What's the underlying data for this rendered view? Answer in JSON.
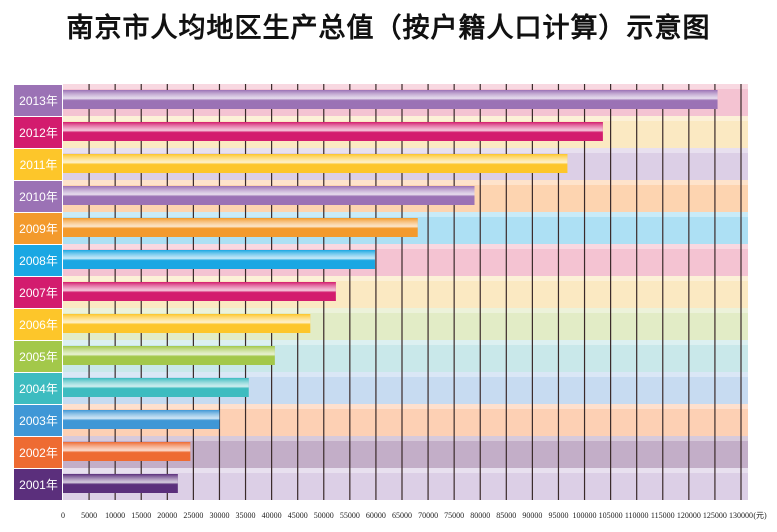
{
  "chart_data": {
    "type": "bar",
    "orientation": "horizontal",
    "title": "南京市人均地区生产总值（按户籍人口计算）示意图",
    "unit_label": "(元)",
    "categories": [
      "2013年",
      "2012年",
      "2011年",
      "2010年",
      "2009年",
      "2008年",
      "2007年",
      "2006年",
      "2005年",
      "2004年",
      "2003年",
      "2002年",
      "2001年"
    ],
    "values": [
      125500,
      103500,
      96700,
      78900,
      68000,
      59800,
      52300,
      47400,
      40600,
      35600,
      30000,
      24400,
      22000
    ],
    "xlim": [
      0,
      130000
    ],
    "x_ticks": [
      0,
      5000,
      10000,
      15000,
      20000,
      25000,
      30000,
      35000,
      40000,
      45000,
      50000,
      55000,
      60000,
      65000,
      70000,
      75000,
      80000,
      85000,
      90000,
      95000,
      100000,
      105000,
      110000,
      115000,
      120000,
      125000,
      130000
    ],
    "grid": true,
    "bar_colors": [
      "#9b72b5",
      "#d31c6e",
      "#fdc62a",
      "#9b72b5",
      "#f39a2c",
      "#1aa7e3",
      "#d31c6e",
      "#fdc62a",
      "#a3c84a",
      "#3dbcc0",
      "#3f97d6",
      "#ee6b32",
      "#5b2f7c"
    ],
    "row_backgrounds": [
      "#f4c3d2",
      "#fbe9c2",
      "#dccfe6",
      "#fdd4b0",
      "#ade0f4",
      "#f4c3d2",
      "#fbe9c2",
      "#e2ecc6",
      "#c9e8ea",
      "#c7dbf1",
      "#fdd0b4",
      "#c3aec8",
      "#dccfe6"
    ]
  }
}
